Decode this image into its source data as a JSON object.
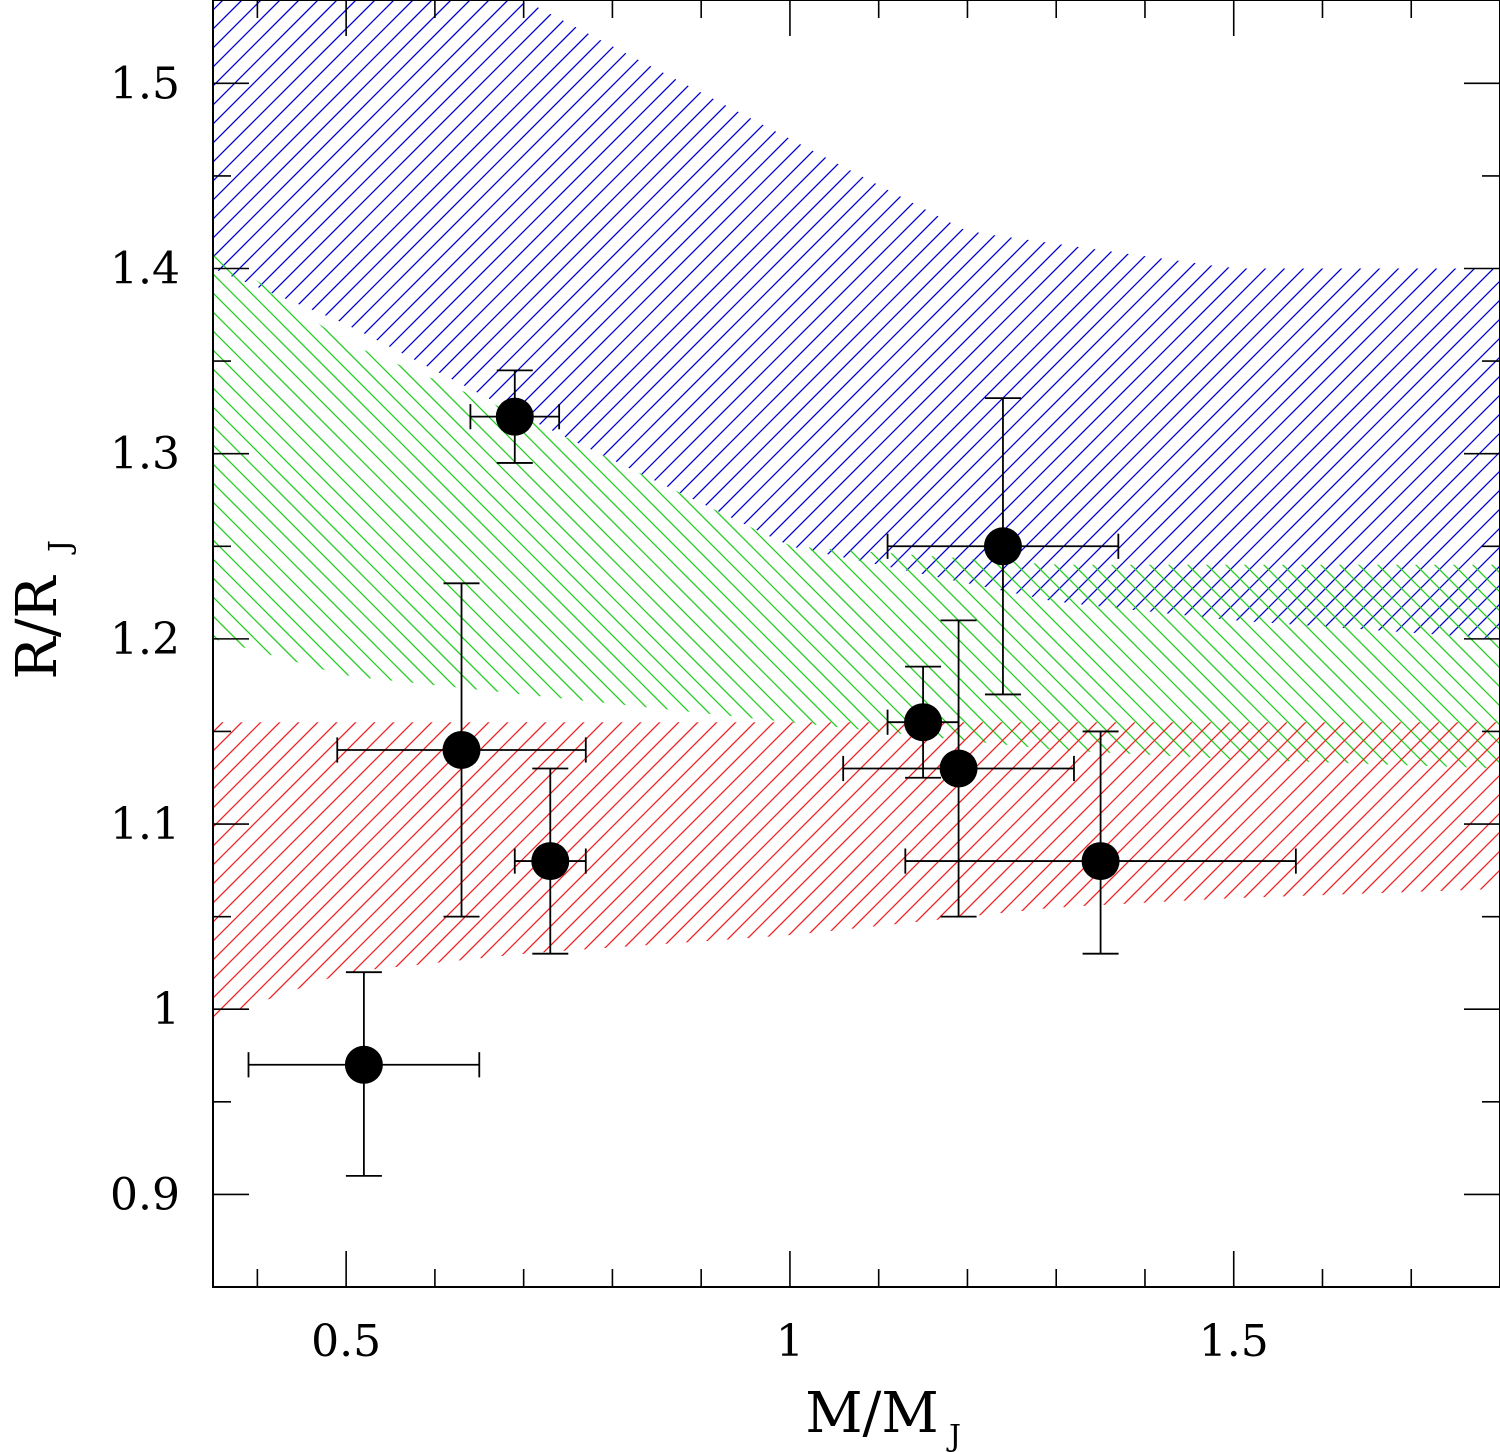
{
  "chart_data": {
    "type": "scatter",
    "xlabel": {
      "main": "M/M",
      "sub": "J"
    },
    "ylabel": {
      "main": "R/R",
      "sub": "J"
    },
    "xlim": [
      0.35,
      1.8
    ],
    "ylim": [
      0.85,
      1.545
    ],
    "x_major_ticks": [
      0.5,
      1,
      1.5
    ],
    "x_tick_labels": [
      "0.5",
      "1",
      "1.5"
    ],
    "x_minor_step": 0.1,
    "y_major_ticks": [
      0.9,
      1.0,
      1.1,
      1.2,
      1.3,
      1.4,
      1.5
    ],
    "y_tick_labels": [
      "0.9",
      "1",
      "1.1",
      "1.2",
      "1.3",
      "1.4",
      "1.5"
    ],
    "y_minor_step": 0.05,
    "points": [
      {
        "x": 0.52,
        "y": 0.97,
        "xerr": [
          0.13,
          0.13
        ],
        "yerr": [
          0.06,
          0.05
        ]
      },
      {
        "x": 0.63,
        "y": 1.14,
        "xerr": [
          0.14,
          0.14
        ],
        "yerr": [
          0.09,
          0.09
        ]
      },
      {
        "x": 0.69,
        "y": 1.32,
        "xerr": [
          0.05,
          0.05
        ],
        "yerr": [
          0.025,
          0.025
        ]
      },
      {
        "x": 0.73,
        "y": 1.08,
        "xerr": [
          0.04,
          0.04
        ],
        "yerr": [
          0.05,
          0.05
        ]
      },
      {
        "x": 1.15,
        "y": 1.155,
        "xerr": [
          0.04,
          0.04
        ],
        "yerr": [
          0.03,
          0.03
        ]
      },
      {
        "x": 1.19,
        "y": 1.13,
        "xerr": [
          0.13,
          0.13
        ],
        "yerr": [
          0.08,
          0.08
        ]
      },
      {
        "x": 1.24,
        "y": 1.25,
        "xerr": [
          0.13,
          0.13
        ],
        "yerr": [
          0.08,
          0.08
        ]
      },
      {
        "x": 1.35,
        "y": 1.08,
        "xerr": [
          0.22,
          0.22
        ],
        "yerr": [
          0.05,
          0.07
        ]
      }
    ],
    "bands": [
      {
        "name": "blue",
        "color": "#0000cc",
        "hatch": "forward",
        "upper": [
          [
            0.35,
            1.545
          ],
          [
            0.7,
            1.545
          ],
          [
            1.2,
            1.42
          ],
          [
            1.5,
            1.4
          ],
          [
            1.8,
            1.4
          ]
        ],
        "lower": [
          [
            0.35,
            1.4
          ],
          [
            0.5,
            1.37
          ],
          [
            0.7,
            1.32
          ],
          [
            1.0,
            1.25
          ],
          [
            1.3,
            1.22
          ],
          [
            1.5,
            1.21
          ],
          [
            1.8,
            1.2
          ]
        ]
      },
      {
        "name": "green",
        "color": "#22cc22",
        "hatch": "backward",
        "upper": [
          [
            0.35,
            1.41
          ],
          [
            0.5,
            1.36
          ],
          [
            0.7,
            1.32
          ],
          [
            1.0,
            1.25
          ],
          [
            1.3,
            1.24
          ],
          [
            1.5,
            1.24
          ],
          [
            1.8,
            1.24
          ]
        ],
        "lower": [
          [
            0.35,
            1.2
          ],
          [
            0.5,
            1.18
          ],
          [
            0.7,
            1.17
          ],
          [
            1.0,
            1.155
          ],
          [
            1.3,
            1.14
          ],
          [
            1.5,
            1.135
          ],
          [
            1.8,
            1.13
          ]
        ]
      },
      {
        "name": "red",
        "color": "#ee2222",
        "hatch": "forward",
        "upper": [
          [
            0.35,
            1.155
          ],
          [
            0.7,
            1.155
          ],
          [
            1.0,
            1.155
          ],
          [
            1.4,
            1.155
          ],
          [
            1.8,
            1.155
          ]
        ],
        "lower": [
          [
            0.35,
            0.995
          ],
          [
            0.5,
            1.02
          ],
          [
            0.7,
            1.03
          ],
          [
            1.0,
            1.04
          ],
          [
            1.3,
            1.055
          ],
          [
            1.5,
            1.06
          ],
          [
            1.8,
            1.065
          ]
        ]
      }
    ]
  }
}
